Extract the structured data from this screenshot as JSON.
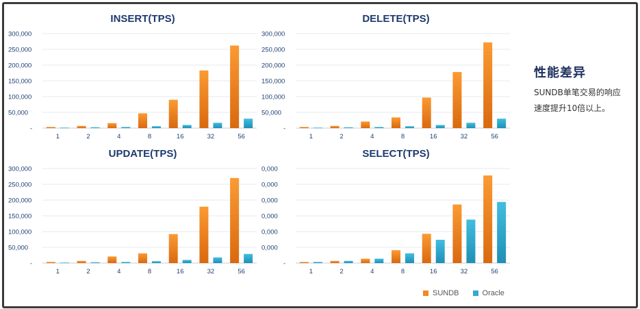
{
  "side": {
    "heading": "性能差异",
    "text": "SUNDB单笔交易的响应速度提升10倍以上。"
  },
  "legend": [
    {
      "label": "SUNDB",
      "color": "#f28a22"
    },
    {
      "label": "Oracle",
      "color": "#35a9cf"
    }
  ],
  "colors": {
    "sundb_top": "#fb9a33",
    "sundb_bottom": "#d9690f",
    "oracle_top": "#42bde0",
    "oracle_bottom": "#1f8fb6",
    "title": "#1d3a6e",
    "grid": "#e4e8ef",
    "axis": "#c9ced8"
  },
  "chart_data": [
    {
      "type": "bar",
      "title": "INSERT(TPS)",
      "categories": [
        "1",
        "2",
        "4",
        "8",
        "16",
        "32",
        "56"
      ],
      "series": [
        {
          "name": "SUNDB",
          "values": [
            3500,
            7000,
            16000,
            47000,
            90000,
            183000,
            262000
          ]
        },
        {
          "name": "Oracle",
          "values": [
            1500,
            2500,
            3500,
            6000,
            10000,
            17000,
            30000
          ]
        }
      ],
      "ylim": [
        0,
        300000
      ],
      "yticks": [
        "300,000",
        "250,000",
        "200,000",
        "150,000",
        "100,000",
        "50,000",
        "-"
      ],
      "grid": true
    },
    {
      "type": "bar",
      "title": "DELETE(TPS)",
      "categories": [
        "1",
        "2",
        "4",
        "8",
        "16",
        "32",
        "56"
      ],
      "series": [
        {
          "name": "SUNDB",
          "values": [
            3500,
            7000,
            21000,
            34000,
            97000,
            178000,
            272000
          ]
        },
        {
          "name": "Oracle",
          "values": [
            1500,
            2500,
            3500,
            6000,
            10000,
            17000,
            30000
          ]
        }
      ],
      "ylim": [
        0,
        300000
      ],
      "yticks": [
        "300,000",
        "250,000",
        "200,000",
        "150,000",
        "100,000",
        "50,000",
        "-"
      ],
      "grid": true
    },
    {
      "type": "bar",
      "title": "UPDATE(TPS)",
      "categories": [
        "1",
        "2",
        "4",
        "8",
        "16",
        "32",
        "56"
      ],
      "series": [
        {
          "name": "SUNDB",
          "values": [
            3500,
            7000,
            21000,
            31000,
            92000,
            179000,
            270000
          ]
        },
        {
          "name": "Oracle",
          "values": [
            1500,
            2500,
            3500,
            6000,
            10000,
            18000,
            29000
          ]
        }
      ],
      "ylim": [
        0,
        300000
      ],
      "yticks": [
        "300,000",
        "250,000",
        "200,000",
        "150,000",
        "100,000",
        "50,000",
        "-"
      ],
      "grid": true
    },
    {
      "type": "bar",
      "title": "SELECT(TPS)",
      "categories": [
        "1",
        "2",
        "4",
        "8",
        "16",
        "32",
        "56"
      ],
      "series": [
        {
          "name": "SUNDB",
          "values": [
            3500,
            7000,
            14000,
            41000,
            93000,
            186000,
            278000
          ]
        },
        {
          "name": "Oracle",
          "values": [
            3500,
            7000,
            14000,
            31000,
            74000,
            138000,
            194000
          ]
        }
      ],
      "ylim": [
        0,
        300000
      ],
      "yticks": [
        "0,000",
        "0,000",
        "0,000",
        "0,000",
        "0,000",
        "0,000",
        "-"
      ],
      "grid": true
    }
  ]
}
